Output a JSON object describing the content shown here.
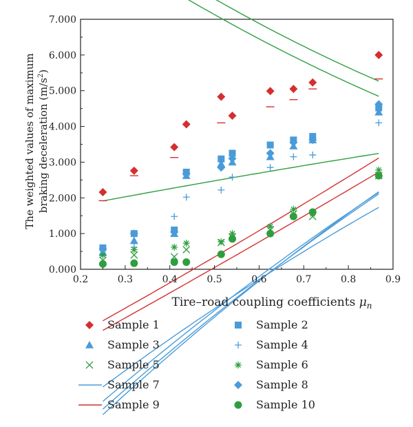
{
  "chart_data": {
    "type": "scatter",
    "xlabel": "Tire–road coupling coefficients",
    "xlabel_symbol": "μ",
    "xlabel_subscript": "n",
    "ylabel_line1": "The weighted values of maximum",
    "ylabel_line2_main": "braking deceleration (m/s",
    "ylabel_line2_sup": "2",
    "ylabel_line2_close": ")",
    "xlim": [
      0.2,
      0.9
    ],
    "ylim": [
      0,
      7
    ],
    "x_ticks": [
      "0.2",
      "0.3",
      "0.4",
      "0.5",
      "0.6",
      "0.7",
      "0.8",
      "0.9"
    ],
    "y_ticks": [
      "0.000",
      "1.000",
      "2.000",
      "3.000",
      "4.000",
      "5.000",
      "6.000",
      "7.000"
    ],
    "grid": false,
    "legend_position": "bottom",
    "colors": {
      "red": "#d42f2f",
      "blue": "#4a9bd9",
      "green": "#2f9e3f",
      "axis": "#222222"
    },
    "series": [
      {
        "name": "Sample 1",
        "kind": "points",
        "marker": "diamond",
        "color": "red",
        "points": [
          [
            0.25,
            2.16
          ],
          [
            0.32,
            2.76
          ],
          [
            0.41,
            3.42
          ],
          [
            0.437,
            4.06
          ],
          [
            0.515,
            4.83
          ],
          [
            0.54,
            4.3
          ],
          [
            0.625,
            4.99
          ],
          [
            0.677,
            5.05
          ],
          [
            0.72,
            5.23
          ],
          [
            0.868,
            6.0
          ]
        ]
      },
      {
        "name": "Sample 2",
        "kind": "points",
        "marker": "square",
        "color": "blue",
        "points": [
          [
            0.25,
            0.6
          ],
          [
            0.32,
            1.0
          ],
          [
            0.41,
            1.1
          ],
          [
            0.437,
            2.72
          ],
          [
            0.515,
            3.09
          ],
          [
            0.54,
            3.25
          ],
          [
            0.625,
            3.48
          ],
          [
            0.677,
            3.62
          ],
          [
            0.72,
            3.72
          ],
          [
            0.868,
            4.52
          ]
        ]
      },
      {
        "name": "Sample 3",
        "kind": "points",
        "marker": "triangle",
        "color": "blue",
        "points": [
          [
            0.25,
            0.48
          ],
          [
            0.32,
            0.8
          ],
          [
            0.41,
            1.0
          ],
          [
            0.437,
            2.62
          ],
          [
            0.515,
            2.95
          ],
          [
            0.54,
            3.0
          ],
          [
            0.625,
            3.15
          ],
          [
            0.677,
            3.45
          ],
          [
            0.72,
            3.62
          ],
          [
            0.868,
            4.4
          ]
        ]
      },
      {
        "name": "Sample 4",
        "kind": "points",
        "marker": "plus",
        "color": "blue",
        "points": [
          [
            0.25,
            0.38
          ],
          [
            0.32,
            0.62
          ],
          [
            0.41,
            1.48
          ],
          [
            0.437,
            2.02
          ],
          [
            0.515,
            2.22
          ],
          [
            0.54,
            2.58
          ],
          [
            0.625,
            2.85
          ],
          [
            0.677,
            3.15
          ],
          [
            0.72,
            3.2
          ],
          [
            0.868,
            4.1
          ]
        ]
      },
      {
        "name": "Sample 5",
        "kind": "points",
        "marker": "x",
        "color": "green",
        "points": [
          [
            0.25,
            0.25
          ],
          [
            0.32,
            0.4
          ],
          [
            0.41,
            0.35
          ],
          [
            0.437,
            0.55
          ],
          [
            0.515,
            0.75
          ],
          [
            0.54,
            0.9
          ],
          [
            0.625,
            1.1
          ],
          [
            0.677,
            1.55
          ],
          [
            0.72,
            1.48
          ],
          [
            0.868,
            2.62
          ]
        ]
      },
      {
        "name": "Sample 6",
        "kind": "points",
        "marker": "asterisk",
        "color": "green",
        "points": [
          [
            0.25,
            0.4
          ],
          [
            0.32,
            0.55
          ],
          [
            0.41,
            0.62
          ],
          [
            0.437,
            0.73
          ],
          [
            0.515,
            0.77
          ],
          [
            0.54,
            1.0
          ],
          [
            0.625,
            1.2
          ],
          [
            0.677,
            1.68
          ],
          [
            0.72,
            1.55
          ],
          [
            0.868,
            2.78
          ]
        ]
      },
      {
        "name": "Sample 7",
        "kind": "line",
        "color": "blue"
      },
      {
        "name": "Sample 8",
        "kind": "points",
        "marker": "diamond",
        "color": "blue",
        "points": [
          [
            0.25,
            0.58
          ],
          [
            0.32,
            1.0
          ],
          [
            0.41,
            1.05
          ],
          [
            0.437,
            2.68
          ],
          [
            0.515,
            2.85
          ],
          [
            0.54,
            3.1
          ],
          [
            0.625,
            3.25
          ],
          [
            0.677,
            3.55
          ],
          [
            0.72,
            3.62
          ],
          [
            0.868,
            4.62
          ]
        ]
      },
      {
        "name": "Sample 9",
        "kind": "line",
        "color": "red"
      },
      {
        "name": "Sample 10",
        "kind": "points",
        "marker": "circle",
        "color": "green",
        "points": [
          [
            0.25,
            0.15
          ],
          [
            0.32,
            0.17
          ],
          [
            0.41,
            0.2
          ],
          [
            0.437,
            0.2
          ],
          [
            0.515,
            0.42
          ],
          [
            0.54,
            0.85
          ],
          [
            0.625,
            1.0
          ],
          [
            0.677,
            1.48
          ],
          [
            0.72,
            1.6
          ],
          [
            0.868,
            2.62
          ]
        ]
      }
    ],
    "red_bars": {
      "color": "red",
      "points": [
        [
          0.25,
          1.92
        ],
        [
          0.32,
          2.62
        ],
        [
          0.41,
          3.13
        ],
        [
          0.515,
          4.1
        ],
        [
          0.625,
          4.55
        ],
        [
          0.677,
          4.75
        ],
        [
          0.72,
          5.05
        ],
        [
          0.868,
          5.33
        ]
      ]
    },
    "fit_curves": [
      {
        "color": "red",
        "x_range": [
          0.25,
          0.868
        ],
        "coeffs": [
          0.6153,
          6.6858,
          -3.1515
        ]
      },
      {
        "color": "red",
        "x_range": [
          0.25,
          0.868
        ],
        "coeffs": [
          0.3727,
          6.7545,
          -3.4224
        ]
      },
      {
        "color": "blue",
        "x_range": [
          0.25,
          0.868
        ],
        "coeffs": [
          -2.2434,
          12.6054,
          -7.0815
        ]
      },
      {
        "color": "blue",
        "x_range": [
          0.25,
          0.868
        ],
        "coeffs": [
          -2.0879,
          12.0818,
          -6.8053
        ]
      },
      {
        "color": "blue",
        "x_range": [
          0.25,
          0.868
        ],
        "coeffs": [
          -1.9497,
          11.6455,
          -6.4894
        ]
      },
      {
        "color": "blue",
        "x_range": [
          0.25,
          0.868
        ],
        "coeffs": [
          -1.7236,
          10.0621,
          -5.7021
        ]
      },
      {
        "color": "green",
        "x_range": [
          0.25,
          0.868
        ],
        "coeffs": [
          2.3485,
          -9.4788,
          11.7264
        ]
      },
      {
        "color": "green",
        "x_range": [
          0.25,
          0.868
        ],
        "coeffs": [
          2.1448,
          -9.1491,
          11.1691
        ]
      },
      {
        "color": "green",
        "x_range": [
          0.25,
          0.868
        ],
        "coeffs": [
          -0.2697,
          2.4545,
          1.3167
        ]
      }
    ]
  }
}
